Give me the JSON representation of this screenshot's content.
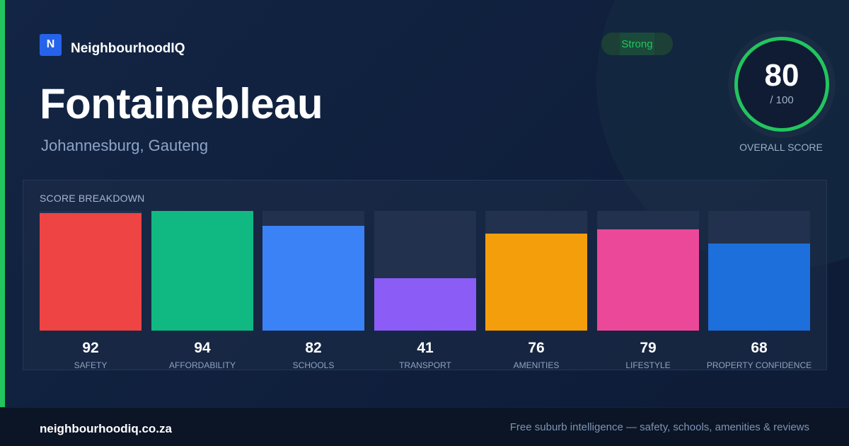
{
  "brand": {
    "logo_letter": "N",
    "name": "NeighbourhoodIQ"
  },
  "suburb": {
    "name": "Fontainebleau",
    "location": "Johannesburg, Gauteng"
  },
  "badge": {
    "label": "Strong",
    "color": "#22c55e"
  },
  "overall": {
    "score": "80",
    "max": "/ 100",
    "label": "OVERALL SCORE",
    "ring_color": "#22c55e"
  },
  "breakdown": {
    "title": "SCORE BREAKDOWN",
    "items": [
      {
        "label": "SAFETY",
        "value": "92",
        "color": "#ef4444"
      },
      {
        "label": "AFFORDABILITY",
        "value": "94",
        "color": "#10b981"
      },
      {
        "label": "SCHOOLS",
        "value": "82",
        "color": "#3b82f6"
      },
      {
        "label": "TRANSPORT",
        "value": "41",
        "color": "#8b5cf6"
      },
      {
        "label": "AMENITIES",
        "value": "76",
        "color": "#f59e0b"
      },
      {
        "label": "LIFESTYLE",
        "value": "79",
        "color": "#ec4899"
      },
      {
        "label": "PROPERTY CONFIDENCE",
        "value": "68",
        "color": "#1d6fdb"
      }
    ]
  },
  "footer": {
    "domain": "neighbourhoodiq.co.za",
    "tagline": "Free suburb intelligence — safety, schools, amenities & reviews"
  }
}
